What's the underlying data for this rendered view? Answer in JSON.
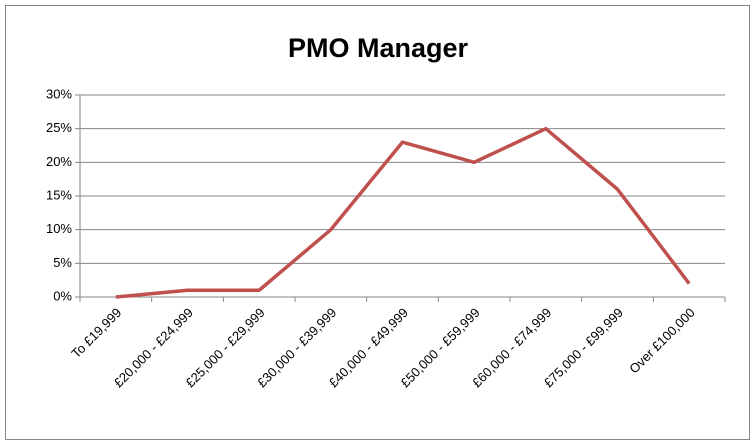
{
  "chart_data": {
    "type": "line",
    "title": "PMO Manager",
    "categories": [
      "To £19,999",
      "£20,000 - £24,999",
      "£25,000 - £29,999",
      "£30,000 - £39,999",
      "£40,000 - £49,999",
      "£50,000 - £59,999",
      "£60,000 - £74,999",
      "£75,000 - £99,999",
      "Over £100,000"
    ],
    "values": [
      0,
      1,
      1,
      10,
      23,
      20,
      25,
      16,
      2
    ],
    "color": "#c0504d",
    "ylim": [
      0,
      30
    ],
    "yticks": [
      {
        "value": 0,
        "label": "0%"
      },
      {
        "value": 5,
        "label": "5%"
      },
      {
        "value": 10,
        "label": "10%"
      },
      {
        "value": 15,
        "label": "15%"
      },
      {
        "value": 20,
        "label": "20%"
      },
      {
        "value": 25,
        "label": "25%"
      },
      {
        "value": 30,
        "label": "30%"
      }
    ],
    "grid": true
  }
}
